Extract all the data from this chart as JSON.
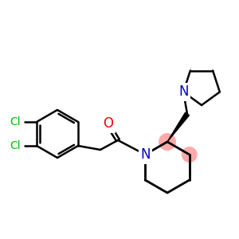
{
  "bg_color": "#ffffff",
  "atom_colors": {
    "N": "#0000cc",
    "O": "#ff0000",
    "Cl": "#00bb00"
  },
  "bond_color": "#000000",
  "stereo_color": "#ffaaaa",
  "bond_width": 1.8,
  "fig_size": [
    3.0,
    3.0
  ],
  "dpi": 100
}
